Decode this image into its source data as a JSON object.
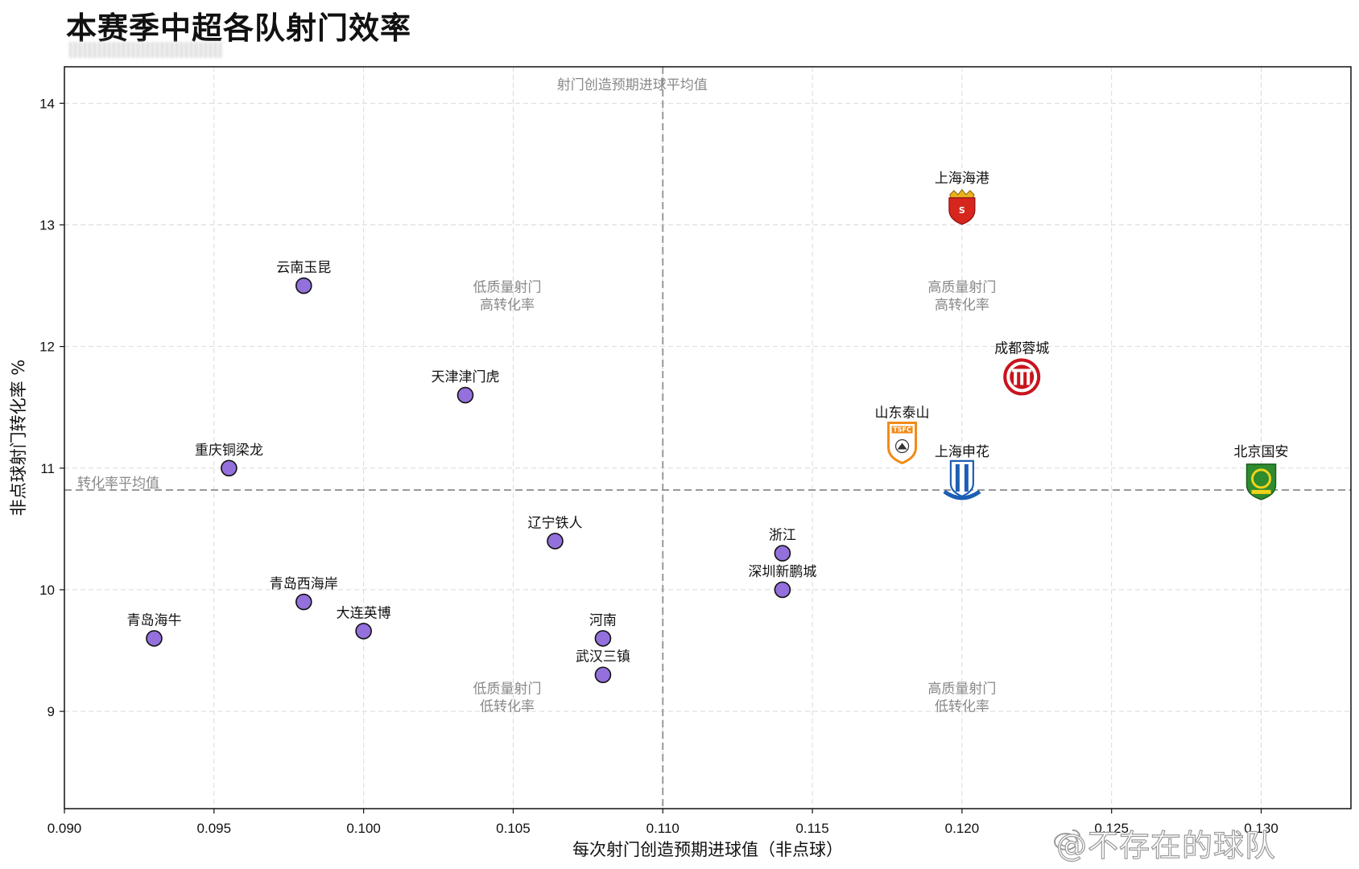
{
  "title": "本赛季中超各队射门效率",
  "watermark": "@不存在的球队",
  "chart_data": {
    "type": "scatter",
    "title": "本赛季中超各队射门效率",
    "xlabel": "每次射门创造预期进球值（非点球）",
    "ylabel": "非点球射门转化率 %",
    "xlim": [
      0.09,
      0.133
    ],
    "ylim": [
      8.2,
      14.3
    ],
    "xticks": [
      0.09,
      0.095,
      0.1,
      0.105,
      0.11,
      0.115,
      0.12,
      0.125,
      0.13
    ],
    "xtick_labels": [
      "0.090",
      "0.095",
      "0.100",
      "0.105",
      "0.110",
      "0.115",
      "0.120",
      "0.125",
      "0.130"
    ],
    "yticks": [
      9,
      10,
      11,
      12,
      13,
      14
    ],
    "ytick_labels": [
      "9",
      "10",
      "11",
      "12",
      "13",
      "14"
    ],
    "grid": true,
    "reference_lines": {
      "x_mean": 0.11,
      "x_mean_label": "射门创造预期进球平均值",
      "y_mean": 10.82,
      "y_mean_label": "转化率平均值"
    },
    "quadrant_labels": [
      {
        "text": [
          "低质量射门",
          "高转化率"
        ],
        "x": 0.1048,
        "y": 12.45
      },
      {
        "text": [
          "高质量射门",
          "高转化率"
        ],
        "x": 0.12,
        "y": 12.45
      },
      {
        "text": [
          "低质量射门",
          "低转化率"
        ],
        "x": 0.1048,
        "y": 9.15
      },
      {
        "text": [
          "高质量射门",
          "低转化率"
        ],
        "x": 0.12,
        "y": 9.15
      }
    ],
    "points": [
      {
        "name": "云南玉昆",
        "x": 0.098,
        "y": 12.5,
        "marker": "circle"
      },
      {
        "name": "天津津门虎",
        "x": 0.1034,
        "y": 11.6,
        "marker": "circle"
      },
      {
        "name": "重庆铜梁龙",
        "x": 0.0955,
        "y": 11.0,
        "marker": "circle"
      },
      {
        "name": "辽宁铁人",
        "x": 0.1064,
        "y": 10.4,
        "marker": "circle"
      },
      {
        "name": "青岛西海岸",
        "x": 0.098,
        "y": 9.9,
        "marker": "circle"
      },
      {
        "name": "大连英博",
        "x": 0.1,
        "y": 9.66,
        "marker": "circle"
      },
      {
        "name": "青岛海牛",
        "x": 0.093,
        "y": 9.6,
        "marker": "circle"
      },
      {
        "name": "河南",
        "x": 0.108,
        "y": 9.6,
        "marker": "circle"
      },
      {
        "name": "武汉三镇",
        "x": 0.108,
        "y": 9.3,
        "marker": "circle"
      },
      {
        "name": "浙江",
        "x": 0.114,
        "y": 10.3,
        "marker": "circle"
      },
      {
        "name": "深圳新鹏城",
        "x": 0.114,
        "y": 10.0,
        "marker": "circle"
      },
      {
        "name": "上海海港",
        "x": 0.12,
        "y": 13.15,
        "marker": "logo",
        "logo": "shanghai-port-badge",
        "color": "#d6261d"
      },
      {
        "name": "成都蓉城",
        "x": 0.122,
        "y": 11.75,
        "marker": "logo",
        "logo": "chengdu-rongcheng-badge",
        "color": "#c8141e"
      },
      {
        "name": "山东泰山",
        "x": 0.118,
        "y": 11.22,
        "marker": "logo",
        "logo": "shandong-taishan-badge",
        "color": "#f28a16"
      },
      {
        "name": "上海申花",
        "x": 0.12,
        "y": 10.9,
        "marker": "logo",
        "logo": "shanghai-shenhua-badge",
        "color": "#1c5fb3"
      },
      {
        "name": "北京国安",
        "x": 0.13,
        "y": 10.9,
        "marker": "logo",
        "logo": "beijing-guoan-badge",
        "color": "#2e8b2e"
      }
    ],
    "marker_color": "#9370db"
  }
}
